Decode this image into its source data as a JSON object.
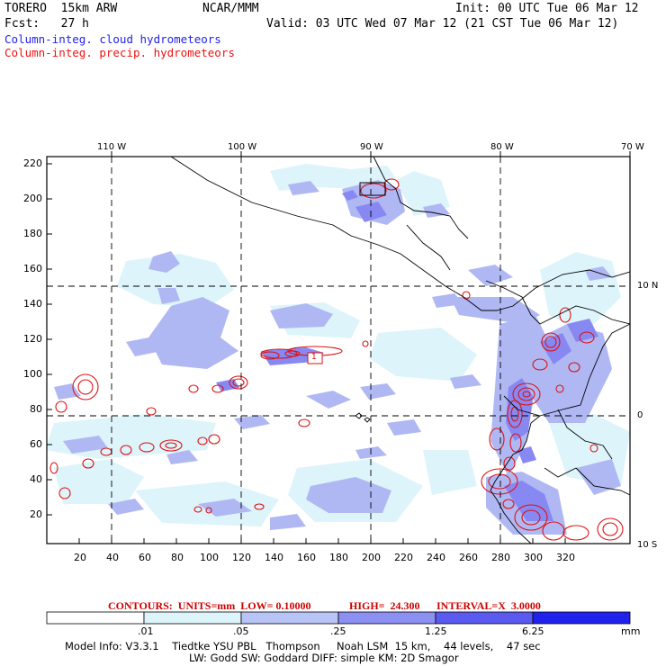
{
  "header": {
    "model": "TORERO  15km ARW",
    "org": "NCAR/MMM",
    "init": "Init: 00 UTC Tue 06 Mar 12",
    "fcst": "Fcst:   27 h",
    "valid": "Valid: 03 UTC Wed 07 Mar 12 (21 CST Tue 06 Mar 12)",
    "line_cloud": "Column-integ. cloud hydrometeors",
    "line_precip": "Column-integ. precip. hydrometeors",
    "color_cloud": "#2222ee",
    "color_precip": "#ee1111"
  },
  "map": {
    "top_lon_labels": [
      "110 W",
      "100 W",
      "90 W",
      "80 W",
      "70 W"
    ],
    "right_lat_labels": [
      "10 N",
      "0",
      "10 S"
    ],
    "left_axis": [
      "220",
      "200",
      "180",
      "160",
      "140",
      "120",
      "100",
      "80",
      "60",
      "40",
      "20"
    ],
    "bottom_axis": [
      "20",
      "40",
      "60",
      "80",
      "100",
      "120",
      "140",
      "160",
      "180",
      "200",
      "220",
      "240",
      "260",
      "280",
      "300",
      "320"
    ],
    "box_label": "1"
  },
  "contours": {
    "units": "CONTOURS:  UNITS=mm  LOW= 0.10000",
    "high": "HIGH=  24.300",
    "interval": "INTERVAL=X  3.0000"
  },
  "colorbar": {
    "labels": [
      ".01",
      ".05",
      ".25",
      "1.25",
      "6.25"
    ],
    "unit": "mm",
    "colors": [
      "#ffffff",
      "#ddf4fb",
      "#b8ddf8",
      "#b0b8f4",
      "#8888f2",
      "#5858f2",
      "#2222ee"
    ]
  },
  "footer": {
    "line1": "Model Info: V3.3.1    Tiedtke YSU PBL   Thompson     Noah LSM  15 km,    44 levels,    47 sec",
    "line2": "LW: Godd SW: Goddard DIFF: simple KM: 2D Smagor"
  }
}
